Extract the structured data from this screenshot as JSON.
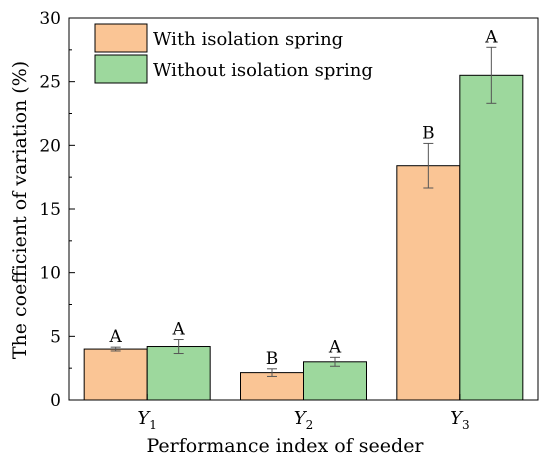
{
  "chart_data": {
    "type": "bar",
    "title": "",
    "xlabel": "Performance index of seeder",
    "ylabel": "The coefficient of variation (%)",
    "ylim": [
      0,
      30
    ],
    "yticks": [
      0,
      5,
      10,
      15,
      20,
      25,
      30
    ],
    "grid": false,
    "legend_position": "top-left",
    "categories": [
      {
        "base": "Y",
        "sub": "1"
      },
      {
        "base": "Y",
        "sub": "2"
      },
      {
        "base": "Y",
        "sub": "3"
      }
    ],
    "series": [
      {
        "name": "With isolation spring",
        "color": "#fac595",
        "values": [
          4.0,
          2.15,
          18.4
        ],
        "errors": [
          0.15,
          0.3,
          1.75
        ],
        "labels": [
          "A",
          "B",
          "B"
        ]
      },
      {
        "name": "Without isolation spring",
        "color": "#9dd89d",
        "values": [
          4.2,
          3.0,
          25.5
        ],
        "errors": [
          0.55,
          0.35,
          2.2
        ],
        "labels": [
          "A",
          "A",
          "A"
        ]
      }
    ]
  }
}
